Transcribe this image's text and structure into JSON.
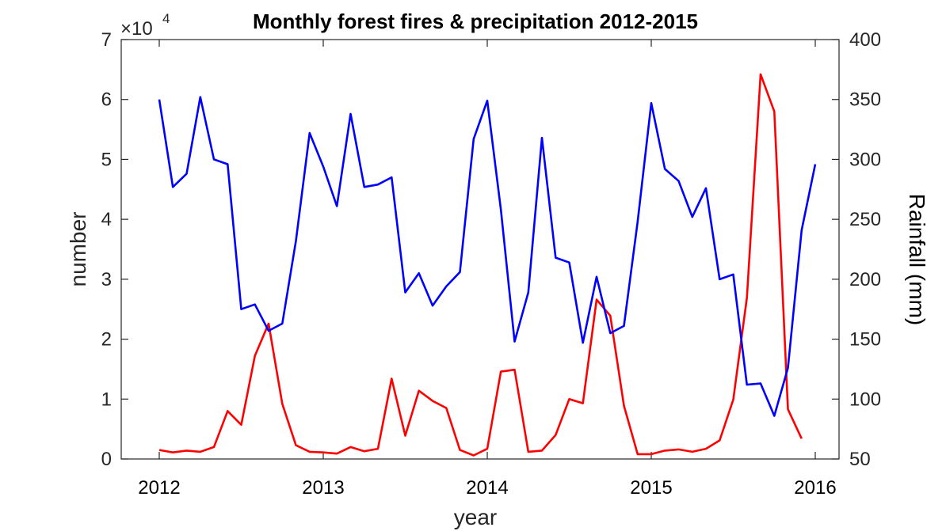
{
  "chart_data": {
    "type": "line",
    "title": "Monthly forest fires & precipitation 2012-2015",
    "xlabel": "year",
    "ylabel": "number",
    "y2label": "Rainfall (mm)",
    "y_exponent_base": "×10",
    "y_exponent_power": "4",
    "xlim": [
      2012,
      2016
    ],
    "ylim": [
      0,
      70000
    ],
    "y2lim": [
      50,
      400
    ],
    "x_ticks": [
      "2012",
      "2013",
      "2014",
      "2015",
      "2016"
    ],
    "y_ticks": [
      "0",
      "1",
      "2",
      "3",
      "4",
      "5",
      "6",
      "7"
    ],
    "y2_ticks": [
      "50",
      "100",
      "150",
      "200",
      "250",
      "300",
      "350",
      "400"
    ],
    "grid": false,
    "colors": {
      "fires": "#ff0000",
      "rainfall": "#0000ff"
    },
    "series": [
      {
        "axis": "left",
        "color": "#ff0000",
        "x": [
          2012.0,
          2012.0833,
          2012.1667,
          2012.25,
          2012.3333,
          2012.4167,
          2012.5,
          2012.5833,
          2012.6667,
          2012.75,
          2012.8333,
          2012.9167,
          2013.0,
          2013.0833,
          2013.1667,
          2013.25,
          2013.3333,
          2013.4167,
          2013.5,
          2013.5833,
          2013.6667,
          2013.75,
          2013.8333,
          2013.9167,
          2014.0,
          2014.0833,
          2014.1667,
          2014.25,
          2014.3333,
          2014.4167,
          2014.5,
          2014.5833,
          2014.6667,
          2014.75,
          2014.8333,
          2014.9167,
          2015.0,
          2015.0833,
          2015.1667,
          2015.25,
          2015.3333,
          2015.4167,
          2015.5,
          2015.5833,
          2015.6667,
          2015.75,
          2015.8333,
          2015.9167
        ],
        "values": [
          1500,
          1100,
          1400,
          1200,
          2000,
          8000,
          5700,
          17200,
          22600,
          9200,
          2300,
          1200,
          1100,
          900,
          2000,
          1300,
          1700,
          13400,
          3900,
          11400,
          9700,
          8500,
          1500,
          600,
          1700,
          14600,
          14900,
          1200,
          1400,
          4000,
          10000,
          9300,
          26600,
          23900,
          8900,
          800,
          800,
          1400,
          1600,
          1200,
          1700,
          3100,
          9900,
          26900,
          64200,
          58000,
          8300,
          3400
        ]
      },
      {
        "axis": "right",
        "color": "#0000ff",
        "x": [
          2012.0,
          2012.0833,
          2012.1667,
          2012.25,
          2012.3333,
          2012.4167,
          2012.5,
          2012.5833,
          2012.6667,
          2012.75,
          2012.8333,
          2012.9167,
          2013.0,
          2013.0833,
          2013.1667,
          2013.25,
          2013.3333,
          2013.4167,
          2013.5,
          2013.5833,
          2013.6667,
          2013.75,
          2013.8333,
          2013.9167,
          2014.0,
          2014.0833,
          2014.1667,
          2014.25,
          2014.3333,
          2014.4167,
          2014.5,
          2014.5833,
          2014.6667,
          2014.75,
          2014.8333,
          2014.9167,
          2015.0,
          2015.0833,
          2015.1667,
          2015.25,
          2015.3333,
          2015.4167,
          2015.5,
          2015.5833,
          2015.6667,
          2015.75,
          2015.8333,
          2015.9167,
          2016.0
        ],
        "values": [
          350,
          277,
          288,
          352,
          300,
          296,
          175,
          179,
          157,
          163,
          232,
          322,
          294,
          261,
          338,
          277,
          279,
          285,
          189,
          205,
          178,
          194,
          206,
          317,
          349,
          258,
          148,
          189,
          318,
          218,
          214,
          147,
          202,
          155,
          161,
          248,
          347,
          292,
          282,
          252,
          276,
          200,
          204,
          112,
          113,
          86,
          126,
          241,
          296
        ]
      }
    ]
  }
}
